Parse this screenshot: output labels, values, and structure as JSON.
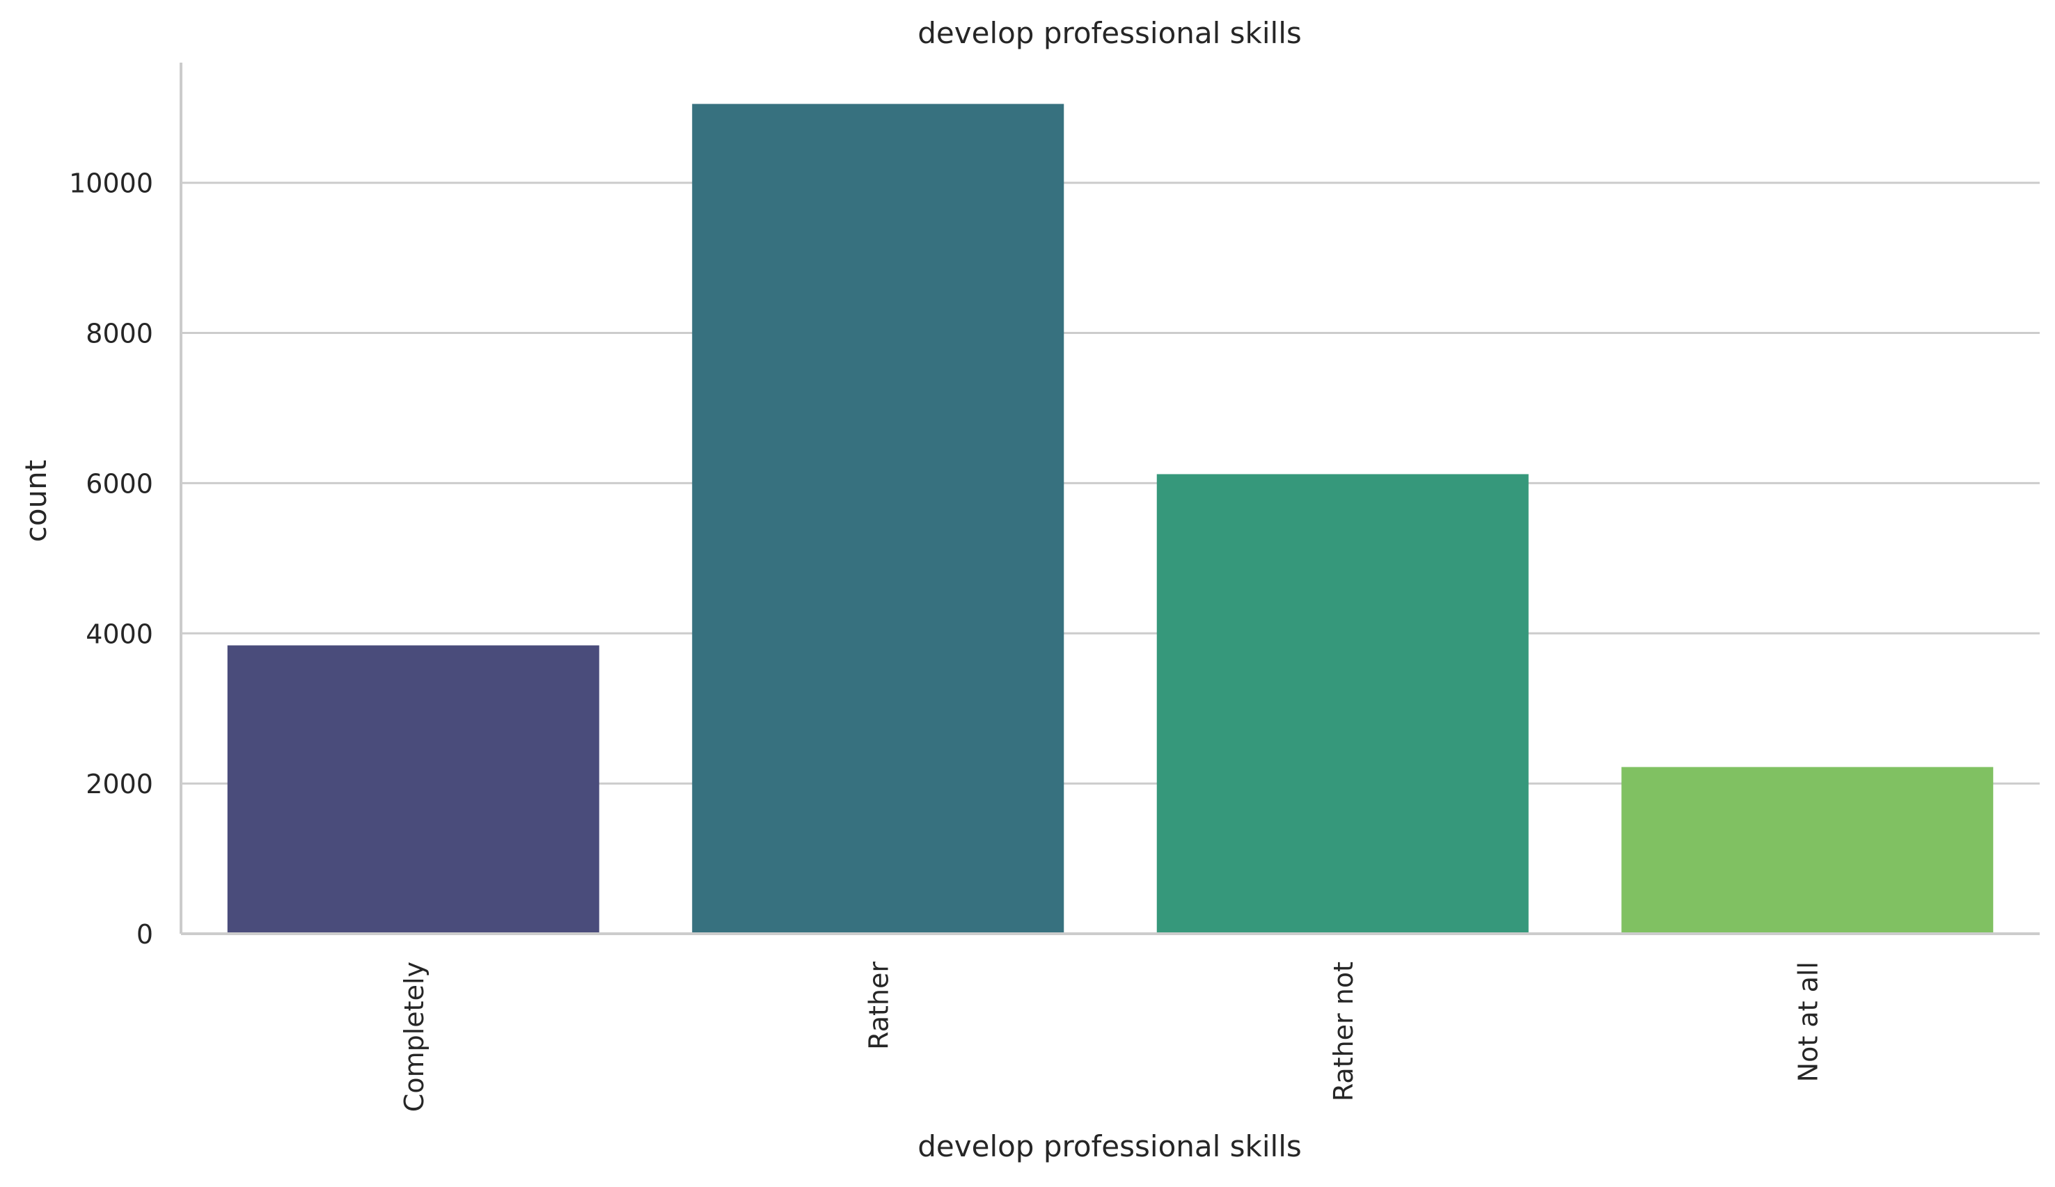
{
  "chart_data": {
    "type": "bar",
    "title": "develop professional skills",
    "xlabel": "develop professional skills",
    "ylabel": "count",
    "categories": [
      "Completely",
      "Rather",
      "Rather not",
      "Not at all"
    ],
    "values": [
      3840,
      11050,
      6120,
      2220
    ],
    "colors": [
      "#4a4c7b",
      "#37717f",
      "#36987b",
      "#80c162"
    ],
    "ylim": [
      0,
      11600
    ],
    "yticks": [
      0,
      2000,
      4000,
      6000,
      8000,
      10000
    ],
    "ytick_labels": [
      "0",
      "2000",
      "4000",
      "6000",
      "8000",
      "10000"
    ],
    "grid": "horizontal",
    "xtick_rotation": "vertical",
    "gridline_color": "#cccccc",
    "axis_color": "#cccccc"
  }
}
